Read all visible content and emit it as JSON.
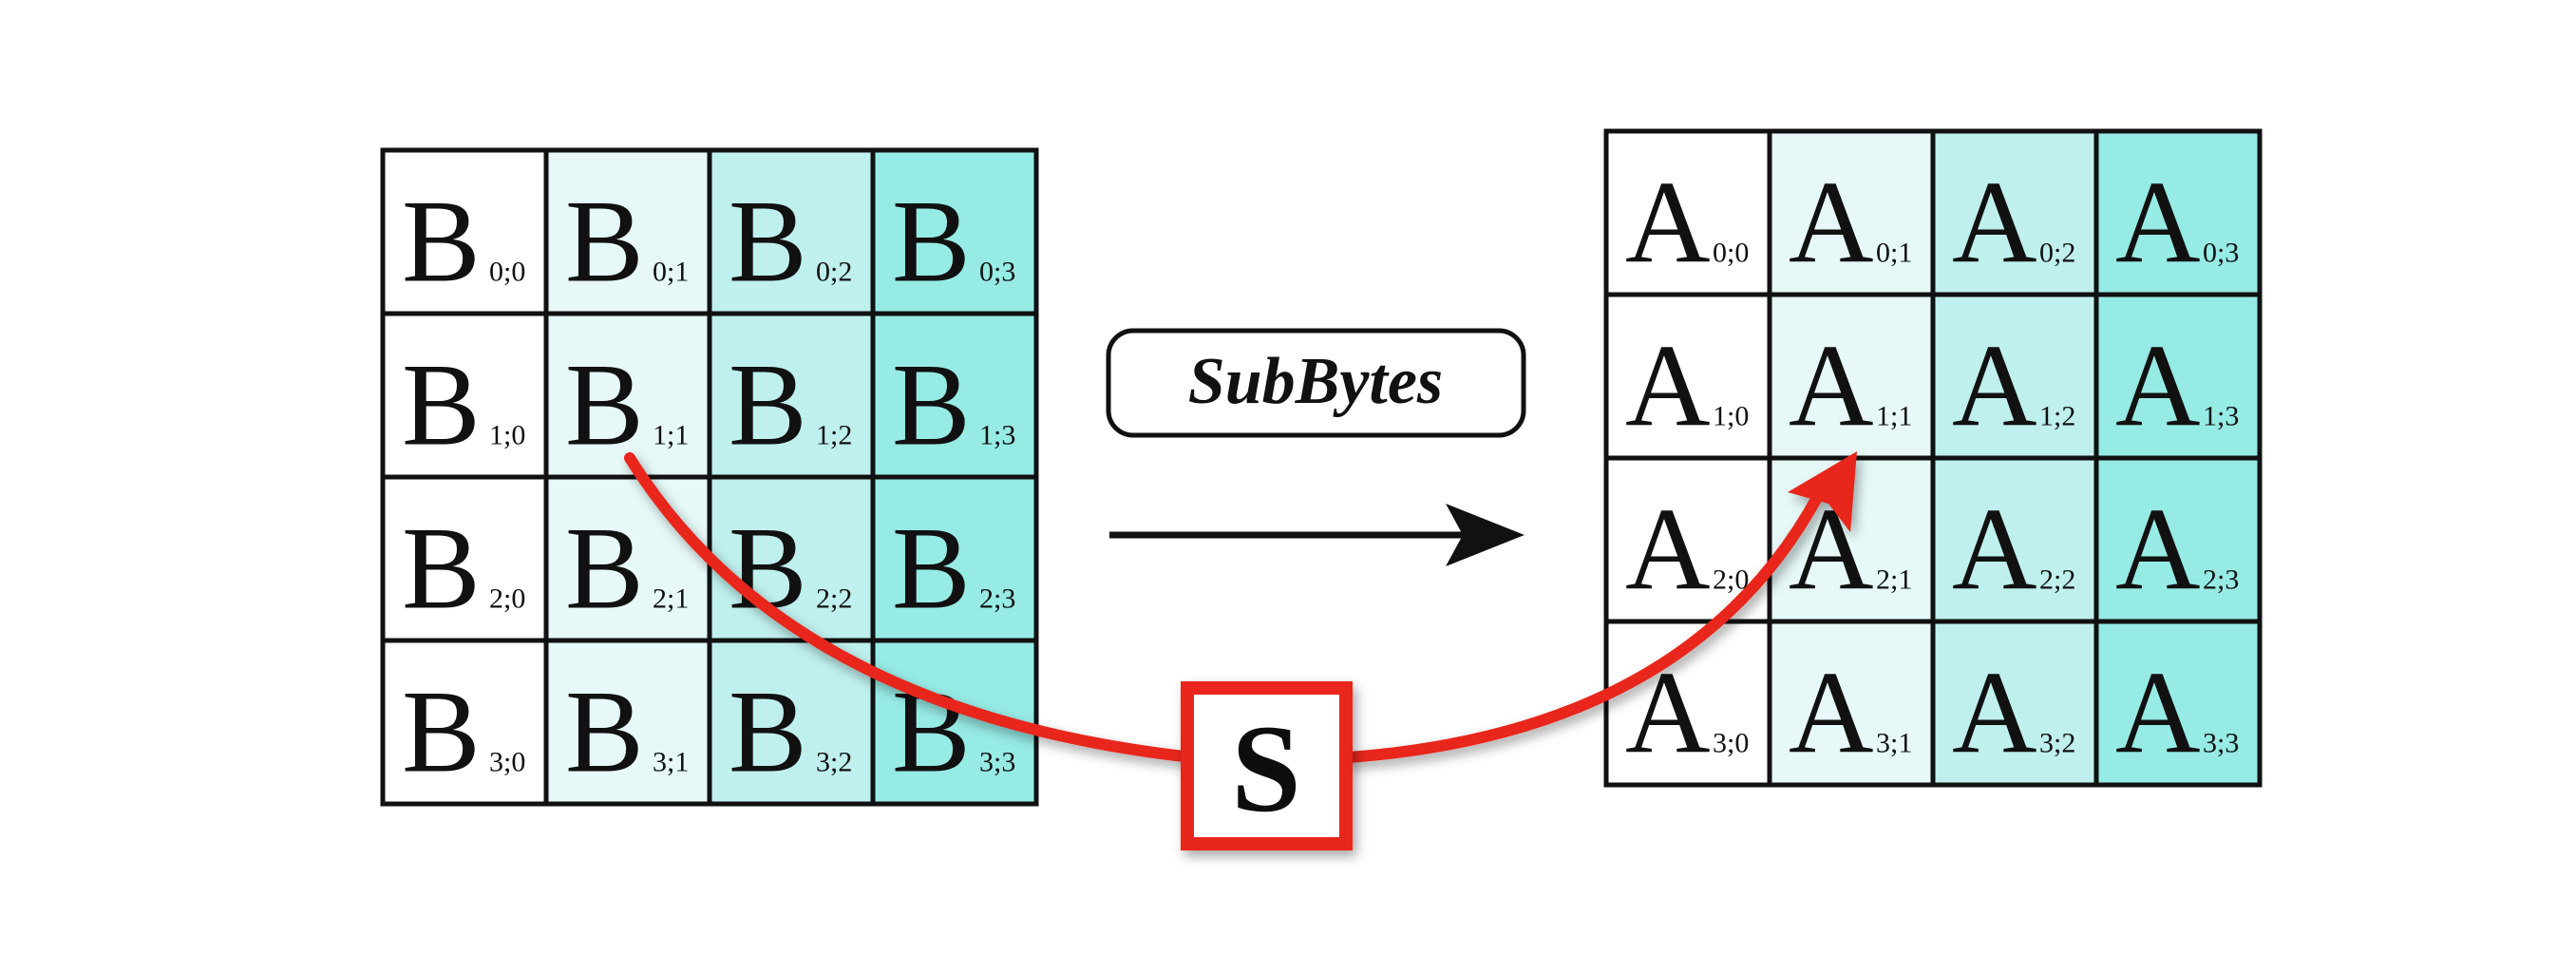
{
  "colors": {
    "column_fills": [
      "#ffffff",
      "#e6f9f8",
      "#bff0ee",
      "#97ebe5"
    ],
    "border": "#111111",
    "arrow": "#111111",
    "s_box": "#e8281b",
    "s_curve": "#e8281b"
  },
  "operation": {
    "label": "SubBytes"
  },
  "sbox": {
    "label": "S"
  },
  "grid_b": {
    "letter": "B",
    "subscripts": [
      [
        "0;0",
        "0;1",
        "0;2",
        "0;3"
      ],
      [
        "1;0",
        "1;1",
        "1;2",
        "1;3"
      ],
      [
        "2;0",
        "2;1",
        "2;2",
        "2;3"
      ],
      [
        "3;0",
        "3;1",
        "3;2",
        "3;3"
      ]
    ]
  },
  "grid_a": {
    "letter": "A",
    "subscripts": [
      [
        "0;0",
        "0;1",
        "0;2",
        "0;3"
      ],
      [
        "1;0",
        "1;1",
        "1;2",
        "1;3"
      ],
      [
        "2;0",
        "2;1",
        "2;2",
        "2;3"
      ],
      [
        "3;0",
        "3;1",
        "3;2",
        "3;3"
      ]
    ]
  },
  "mapping": {
    "from": "grid_b.1;1",
    "to": "grid_a.1;1"
  }
}
